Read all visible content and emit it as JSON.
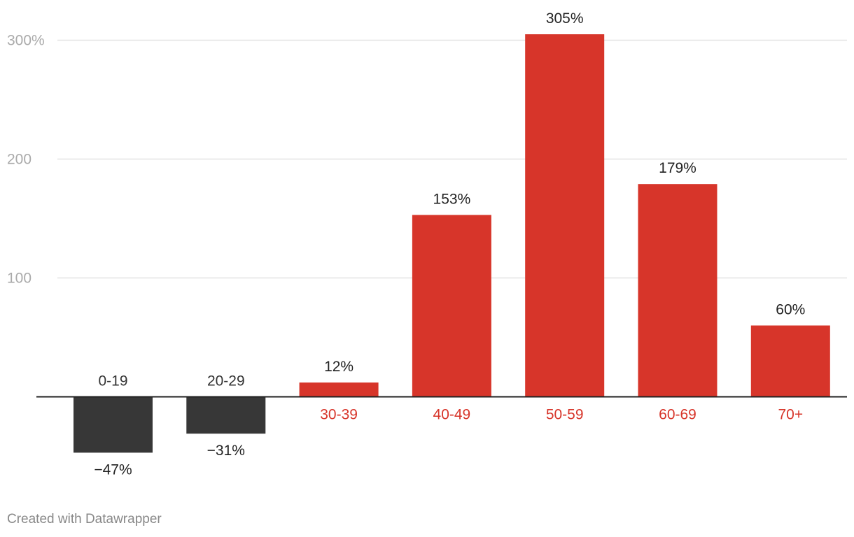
{
  "chart_data": {
    "type": "bar",
    "categories": [
      "0-19",
      "20-29",
      "30-39",
      "40-49",
      "50-59",
      "60-69",
      "70+"
    ],
    "values": [
      -47,
      -31,
      12,
      153,
      305,
      179,
      60
    ],
    "value_labels": [
      "−47%",
      "−31%",
      "12%",
      "153%",
      "305%",
      "179%",
      "60%"
    ],
    "y_ticks": [
      100,
      200,
      300
    ],
    "y_tick_labels": [
      "100",
      "200",
      "300%"
    ],
    "ylim": [
      -60,
      312
    ],
    "grid": true,
    "colors": {
      "positive": "#d7352a",
      "negative": "#373737",
      "positive_label": "#d7352a",
      "negative_label": "#333333",
      "gridline": "#e3e3e3",
      "tick_label": "#aaaaaa",
      "baseline": "#222222"
    }
  },
  "footer": {
    "credit": "Created with Datawrapper"
  }
}
